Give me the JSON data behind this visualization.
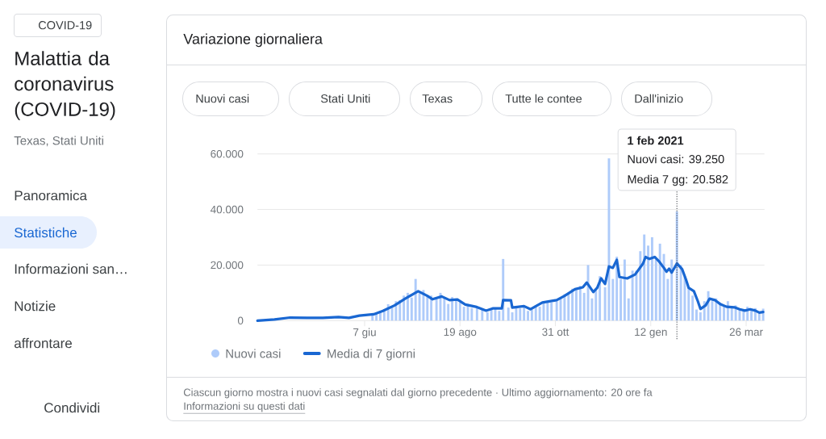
{
  "chart_data": {
    "type": "bar",
    "title": "Variazione giornaliera",
    "annotations": [
      "COVID-19",
      "Malattia da coronavirus (COVID-19)",
      "Texas, Stati Uniti",
      "Panoramica",
      "Statistiche",
      "Informazioni san…",
      "Notizie",
      "affrontare",
      "Condividi",
      "Nuovi casi",
      "Stati Uniti",
      "Texas",
      "Tutte le contee",
      "Dall'inizio",
      "Nuovi casi: 39.250",
      "Media 7 gg: 20.582",
      "Ciascun giorno mostra i nuovi casi segnalati dal giorno precedente · Ultimo aggiornamento: 20 ore fa",
      "Informazioni su questi dati"
    ],
    "xlim": [
      "2020-03-17",
      "2021-04-09"
    ],
    "xticks": [
      {
        "value": "2020-06-07",
        "label": "7 giu"
      },
      {
        "value": "2020-08-19",
        "label": "19 ago"
      },
      {
        "value": "2020-10-31",
        "label": "31 ott"
      },
      {
        "value": "2021-01-12",
        "label": "12 gen"
      },
      {
        "value": "2021-03-26",
        "label": "26 mar"
      }
    ],
    "ylim": [
      0,
      60000
    ],
    "yticks": [
      0,
      {
        "value": 20000,
        "label": "20.000"
      },
      {
        "value": 40000,
        "label": "40.000"
      },
      {
        "value": 60000,
        "label": "60.000"
      }
    ],
    "grid": "y",
    "legend": "bottom left",
    "ref_lines": [
      {
        "axis": "x",
        "value": "2021-02-01",
        "label": "1 feb 2021",
        "color": "#5f6368",
        "line_style": "dotted"
      }
    ],
    "series": [
      {
        "name": "Nuovi casi",
        "color": "#aecbfa",
        "x": [
          "2020-06-13",
          "2020-06-16",
          "2020-06-19",
          "2020-06-22",
          "2020-06-25",
          "2020-06-28",
          "2020-07-01",
          "2020-07-04",
          "2020-07-07",
          "2020-07-10",
          "2020-07-13",
          "2020-07-16",
          "2020-07-19",
          "2020-07-22",
          "2020-07-25",
          "2020-07-28",
          "2020-08-01",
          "2020-08-04",
          "2020-08-07",
          "2020-08-10",
          "2020-08-13",
          "2020-08-16",
          "2020-08-19",
          "2020-08-22",
          "2020-08-25",
          "2020-08-28",
          "2020-09-01",
          "2020-09-05",
          "2020-09-09",
          "2020-09-12",
          "2020-09-15",
          "2020-09-18",
          "2020-09-21",
          "2020-09-25",
          "2020-09-28",
          "2020-10-01",
          "2020-10-04",
          "2020-10-07",
          "2020-10-10",
          "2020-10-13",
          "2020-10-16",
          "2020-10-19",
          "2020-10-22",
          "2020-10-25",
          "2020-10-28",
          "2020-11-01",
          "2020-11-04",
          "2020-11-07",
          "2020-11-10",
          "2020-11-13",
          "2020-11-16",
          "2020-11-19",
          "2020-11-22",
          "2020-11-25",
          "2020-11-28",
          "2020-12-01",
          "2020-12-04",
          "2020-12-08",
          "2020-12-11",
          "2020-12-14",
          "2020-12-17",
          "2020-12-20",
          "2020-12-23",
          "2020-12-26",
          "2020-12-29",
          "2021-01-01",
          "2021-01-04",
          "2021-01-07",
          "2021-01-10",
          "2021-01-13",
          "2021-01-16",
          "2021-01-19",
          "2021-01-22",
          "2021-01-25",
          "2021-01-28",
          "2021-02-01",
          "2021-02-04",
          "2021-02-07",
          "2021-02-10",
          "2021-02-13",
          "2021-02-16",
          "2021-02-19",
          "2021-02-22",
          "2021-02-25",
          "2021-02-28",
          "2021-03-03",
          "2021-03-06",
          "2021-03-09",
          "2021-03-12",
          "2021-03-15",
          "2021-03-18",
          "2021-03-21",
          "2021-03-24",
          "2021-03-27",
          "2021-03-30",
          "2021-04-02",
          "2021-04-05",
          "2021-04-08"
        ],
        "values": [
          2300,
          2700,
          3500,
          4000,
          5900,
          5300,
          7000,
          7400,
          9000,
          10000,
          8300,
          15000,
          9900,
          11000,
          8800,
          9000,
          7800,
          10000,
          8500,
          6000,
          8500,
          7600,
          6500,
          5000,
          6000,
          4500,
          5000,
          4000,
          3000,
          4000,
          4200,
          3500,
          22200,
          4700,
          3000,
          4900,
          4400,
          5000,
          3500,
          4000,
          5500,
          5000,
          6500,
          6900,
          6500,
          7000,
          8200,
          9500,
          10000,
          11500,
          11000,
          12500,
          10000,
          20000,
          8000,
          11000,
          16000,
          12000,
          58400,
          15000,
          23000,
          15000,
          22000,
          8000,
          18000,
          18000,
          25000,
          31000,
          27000,
          30000,
          22000,
          27700,
          24000,
          15000,
          22000,
          39250,
          20000,
          16000,
          12000,
          9000,
          4000,
          3000,
          7000,
          10600,
          7000,
          8000,
          6500,
          5000,
          7000,
          4500,
          5500,
          4000,
          3500,
          5000,
          3800,
          4500,
          2500,
          4300
        ]
      },
      {
        "name": "Media di 7 giorni",
        "type": "line",
        "color": "#1967d2",
        "x": [
          "2020-03-17",
          "2020-03-30",
          "2020-04-11",
          "2020-04-24",
          "2020-05-06",
          "2020-05-18",
          "2020-05-26",
          "2020-06-03",
          "2020-06-14",
          "2020-06-21",
          "2020-06-30",
          "2020-07-08",
          "2020-07-15",
          "2020-07-18",
          "2020-07-25",
          "2020-07-29",
          "2020-08-05",
          "2020-08-11",
          "2020-08-17",
          "2020-08-23",
          "2020-08-31",
          "2020-09-08",
          "2020-09-13",
          "2020-09-20",
          "2020-09-21",
          "2020-09-27",
          "2020-09-28",
          "2020-10-07",
          "2020-10-12",
          "2020-10-21",
          "2020-11-01",
          "2020-11-07",
          "2020-11-15",
          "2020-11-21",
          "2020-11-24",
          "2020-11-29",
          "2020-12-02",
          "2020-12-05",
          "2020-12-08",
          "2020-12-11",
          "2020-12-14",
          "2020-12-17",
          "2020-12-19",
          "2020-12-25",
          "2020-12-31",
          "2021-01-06",
          "2021-01-08",
          "2021-01-11",
          "2021-01-15",
          "2021-01-18",
          "2021-01-22",
          "2021-01-24",
          "2021-01-26",
          "2021-01-28",
          "2021-02-01",
          "2021-02-05",
          "2021-02-08",
          "2021-02-10",
          "2021-02-14",
          "2021-02-17",
          "2021-02-19",
          "2021-02-23",
          "2021-02-26",
          "2021-03-02",
          "2021-03-06",
          "2021-03-11",
          "2021-03-17",
          "2021-03-21",
          "2021-03-25",
          "2021-03-29",
          "2021-04-02",
          "2021-04-05",
          "2021-04-08"
        ],
        "values": [
          0,
          400,
          1100,
          1000,
          1000,
          1300,
          1000,
          1800,
          2300,
          3500,
          5500,
          7900,
          9800,
          10600,
          8900,
          7700,
          8700,
          7400,
          7600,
          5800,
          5000,
          3600,
          4400,
          4400,
          7400,
          7300,
          4700,
          5200,
          4100,
          6500,
          7400,
          8900,
          11300,
          12000,
          13700,
          10300,
          11800,
          15200,
          13200,
          19500,
          19000,
          21900,
          15700,
          15200,
          16600,
          20500,
          22900,
          22200,
          22900,
          21500,
          19000,
          17600,
          18700,
          17300,
          20582,
          18500,
          14700,
          11800,
          10600,
          7000,
          4200,
          5500,
          7900,
          7400,
          6000,
          5000,
          4800,
          4100,
          3600,
          4100,
          3600,
          2900,
          3100
        ]
      }
    ]
  }
}
